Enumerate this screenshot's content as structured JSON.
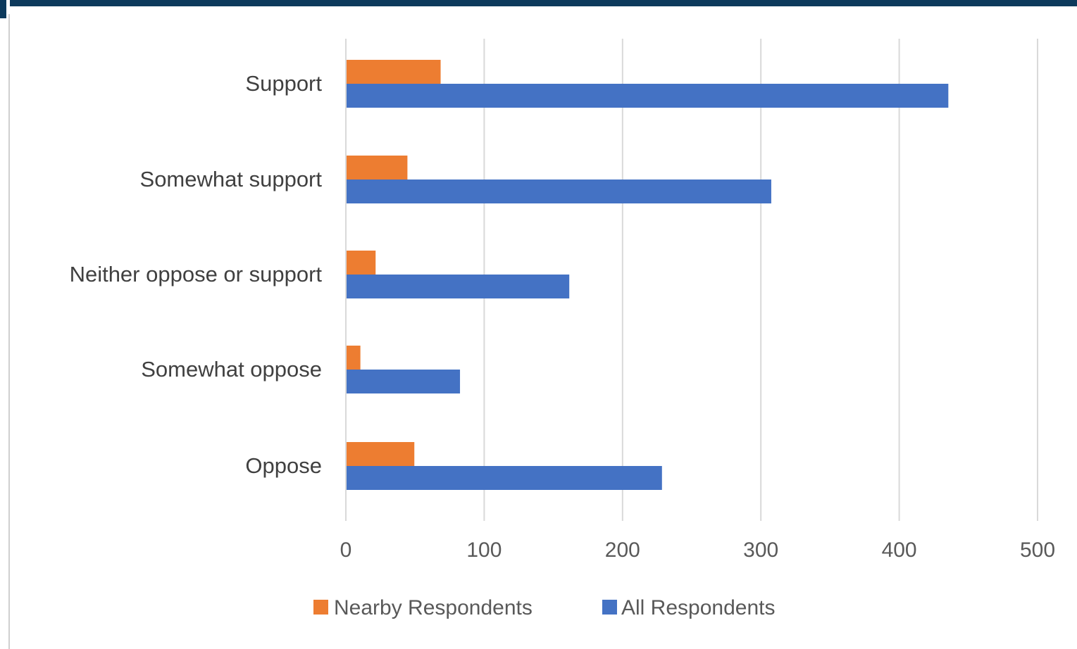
{
  "chart_data": {
    "type": "bar",
    "orientation": "horizontal",
    "categories": [
      "Support",
      "Somewhat support",
      "Neither oppose or support",
      "Somewhat oppose",
      "Oppose"
    ],
    "series": [
      {
        "name": "Nearby Respondents",
        "color": "#ed7d31",
        "values": [
          68,
          44,
          21,
          10,
          49
        ]
      },
      {
        "name": "All Respondents",
        "color": "#4472c4",
        "values": [
          435,
          307,
          161,
          82,
          228
        ]
      }
    ],
    "xlim": [
      0,
      500
    ],
    "xticks": [
      "0",
      "100",
      "200",
      "300",
      "400",
      "500"
    ],
    "grid": "vertical",
    "legend_position": "bottom"
  },
  "colors": {
    "frame_accent": "#0d3a5c",
    "gridline": "#d9d9d9"
  }
}
